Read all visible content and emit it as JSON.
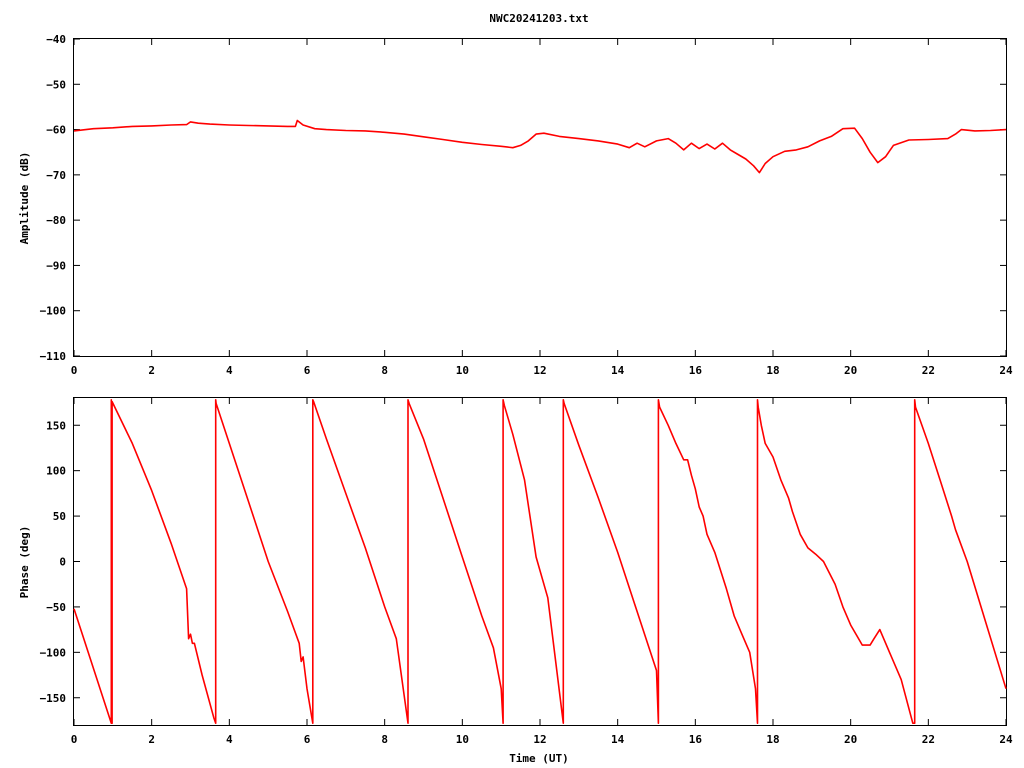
{
  "chart_data": [
    {
      "type": "line",
      "title": "NWC20241203.txt",
      "xlabel": "",
      "ylabel": "Amplitude (dB)",
      "xlim": [
        0,
        24
      ],
      "ylim": [
        -110,
        -40
      ],
      "xticks": [
        0,
        2,
        4,
        6,
        8,
        10,
        12,
        14,
        16,
        18,
        20,
        22,
        24
      ],
      "yticks": [
        -40,
        -50,
        -60,
        -70,
        -80,
        -90,
        -100,
        -110
      ],
      "xtick_labels": [
        "0",
        "2",
        "4",
        "6",
        "8",
        "10",
        "12",
        "14",
        "16",
        "18",
        "20",
        "22",
        "24"
      ],
      "ytick_labels": [
        "−40",
        "−50",
        "−60",
        "−70",
        "−80",
        "−90",
        "−100",
        "−110"
      ],
      "grid": false,
      "series": [
        {
          "color": "#ff0000",
          "x": [
            0,
            0.5,
            1,
            1.5,
            2,
            2.5,
            2.9,
            3.0,
            3.2,
            3.5,
            4,
            4.5,
            5,
            5.5,
            5.7,
            5.75,
            5.9,
            6.2,
            6.5,
            7,
            7.5,
            8,
            8.5,
            9,
            9.5,
            10,
            10.5,
            11,
            11.3,
            11.5,
            11.7,
            11.9,
            12.1,
            12.5,
            13,
            13.5,
            14,
            14.3,
            14.5,
            14.7,
            15,
            15.3,
            15.5,
            15.7,
            15.9,
            16.1,
            16.3,
            16.5,
            16.7,
            16.9,
            17.1,
            17.3,
            17.5,
            17.65,
            17.8,
            18,
            18.3,
            18.6,
            18.9,
            19.2,
            19.5,
            19.8,
            20.1,
            20.3,
            20.5,
            20.7,
            20.9,
            21.1,
            21.5,
            22,
            22.5,
            22.7,
            22.85,
            23.2,
            23.6,
            24
          ],
          "y": [
            -60.3,
            -59.8,
            -59.6,
            -59.3,
            -59.2,
            -59.0,
            -58.9,
            -58.3,
            -58.6,
            -58.8,
            -59.0,
            -59.1,
            -59.2,
            -59.3,
            -59.3,
            -58.0,
            -59.0,
            -59.8,
            -60.0,
            -60.2,
            -60.3,
            -60.6,
            -61.0,
            -61.6,
            -62.2,
            -62.8,
            -63.3,
            -63.7,
            -64.0,
            -63.5,
            -62.5,
            -61.0,
            -60.8,
            -61.5,
            -62.0,
            -62.5,
            -63.2,
            -64.0,
            -63.0,
            -63.8,
            -62.5,
            -62.0,
            -63.0,
            -64.5,
            -63.0,
            -64.2,
            -63.2,
            -64.3,
            -63.0,
            -64.5,
            -65.5,
            -66.5,
            -68.0,
            -69.5,
            -67.5,
            -66.0,
            -64.8,
            -64.5,
            -63.8,
            -62.5,
            -61.5,
            -59.8,
            -59.7,
            -62.0,
            -65.0,
            -67.3,
            -66.0,
            -63.5,
            -62.3,
            -62.2,
            -62.0,
            -61.0,
            -60.0,
            -60.3,
            -60.2,
            -60.0
          ]
        }
      ]
    },
    {
      "type": "line",
      "title": "",
      "xlabel": "Time (UT)",
      "ylabel": "Phase (deg)",
      "xlim": [
        0,
        24
      ],
      "ylim": [
        -180,
        180
      ],
      "xticks": [
        0,
        2,
        4,
        6,
        8,
        10,
        12,
        14,
        16,
        18,
        20,
        22,
        24
      ],
      "yticks": [
        150,
        100,
        50,
        0,
        -50,
        -100,
        -150
      ],
      "xtick_labels": [
        "0",
        "2",
        "4",
        "6",
        "8",
        "10",
        "12",
        "14",
        "16",
        "18",
        "20",
        "22",
        "24"
      ],
      "ytick_labels": [
        "150",
        "100",
        "50",
        "0",
        "−50",
        "−100",
        "−150"
      ],
      "grid": false,
      "series": [
        {
          "color": "#ff0000",
          "x": [
            0,
            0.96,
            0.96,
            0.98,
            0.98,
            1.5,
            2.0,
            2.5,
            2.9,
            2.95,
            3.0,
            3.05,
            3.1,
            3.3,
            3.6,
            3.65,
            3.65,
            3.66,
            4.0,
            4.5,
            5.0,
            5.5,
            5.8,
            5.85,
            5.9,
            6.0,
            6.15,
            6.15,
            6.17,
            6.5,
            7.0,
            7.5,
            8.0,
            8.3,
            8.6,
            8.6,
            8.63,
            9.0,
            9.5,
            10.0,
            10.5,
            10.8,
            11.0,
            11.05,
            11.05,
            11.08,
            11.3,
            11.6,
            11.9,
            12.2,
            12.6,
            12.6,
            12.62,
            13.0,
            13.5,
            14.0,
            14.5,
            15.0,
            15.05,
            15.05,
            15.08,
            15.3,
            15.5,
            15.7,
            15.8,
            15.9,
            16.0,
            16.1,
            16.2,
            16.3,
            16.5,
            16.8,
            17.0,
            17.2,
            17.4,
            17.55,
            17.6,
            17.6,
            17.62,
            17.7,
            17.8,
            18.0,
            18.2,
            18.4,
            18.5,
            18.7,
            18.9,
            19.1,
            19.3,
            19.6,
            19.8,
            20.0,
            20.3,
            20.5,
            20.6,
            20.75,
            20.85,
            21.0,
            21.3,
            21.6,
            21.65,
            21.65,
            21.67,
            22.0,
            22.3,
            22.6,
            22.7,
            23.0,
            23.5,
            24
          ],
          "y": [
            -52,
            -178,
            178,
            -178,
            176,
            130,
            78,
            20,
            -30,
            -85,
            -80,
            -90,
            -90,
            -125,
            -172,
            -178,
            178,
            174,
            130,
            65,
            0,
            -55,
            -90,
            -110,
            -105,
            -140,
            -178,
            178,
            176,
            135,
            75,
            15,
            -50,
            -85,
            -178,
            178,
            174,
            135,
            70,
            5,
            -60,
            -95,
            -140,
            -178,
            178,
            172,
            140,
            90,
            5,
            -40,
            -178,
            178,
            174,
            128,
            70,
            10,
            -55,
            -120,
            -178,
            178,
            170,
            150,
            130,
            112,
            112,
            95,
            80,
            60,
            50,
            30,
            10,
            -30,
            -60,
            -80,
            -100,
            -140,
            -178,
            178,
            170,
            150,
            130,
            115,
            90,
            70,
            55,
            30,
            15,
            8,
            0,
            -25,
            -50,
            -70,
            -92,
            -92,
            -85,
            -75,
            -85,
            -100,
            -130,
            -178,
            -178,
            178,
            170,
            130,
            90,
            50,
            35,
            0,
            -70,
            -140
          ]
        }
      ]
    }
  ]
}
